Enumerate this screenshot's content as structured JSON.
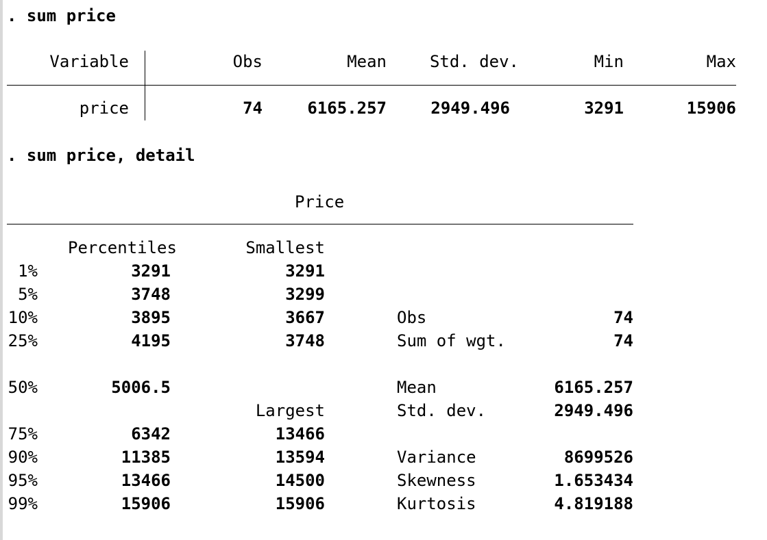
{
  "cmd1": ". sum price",
  "summary": {
    "headers": {
      "variable": "Variable",
      "obs": "Obs",
      "mean": "Mean",
      "sd": "Std. dev.",
      "min": "Min",
      "max": "Max"
    },
    "row": {
      "name": "price",
      "obs": "74",
      "mean": "6165.257",
      "sd": "2949.496",
      "min": "3291",
      "max": "15906"
    }
  },
  "cmd2": ". sum price, detail",
  "detail": {
    "title": "Price",
    "percentiles_label": "Percentiles",
    "smallest_label": "Smallest",
    "largest_label": "Largest",
    "rows": [
      {
        "pct": "1%",
        "value": "3291",
        "extreme": "3291"
      },
      {
        "pct": "5%",
        "value": "3748",
        "extreme": "3299"
      },
      {
        "pct": "10%",
        "value": "3895",
        "extreme": "3667",
        "stat_label": "Obs",
        "stat_value": "74"
      },
      {
        "pct": "25%",
        "value": "4195",
        "extreme": "3748",
        "stat_label": "Sum of wgt.",
        "stat_value": "74"
      },
      {
        "pct": "50%",
        "value": "5006.5",
        "stat_label": "Mean",
        "stat_value": "6165.257"
      },
      {
        "stat_label": "Std. dev.",
        "stat_value": "2949.496"
      },
      {
        "pct": "75%",
        "value": "6342",
        "extreme": "13466"
      },
      {
        "pct": "90%",
        "value": "11385",
        "extreme": "13594",
        "stat_label": "Variance",
        "stat_value": "8699526"
      },
      {
        "pct": "95%",
        "value": "13466",
        "extreme": "14500",
        "stat_label": "Skewness",
        "stat_value": "1.653434"
      },
      {
        "pct": "99%",
        "value": "15906",
        "extreme": "15906",
        "stat_label": "Kurtosis",
        "stat_value": "4.819188"
      }
    ]
  }
}
